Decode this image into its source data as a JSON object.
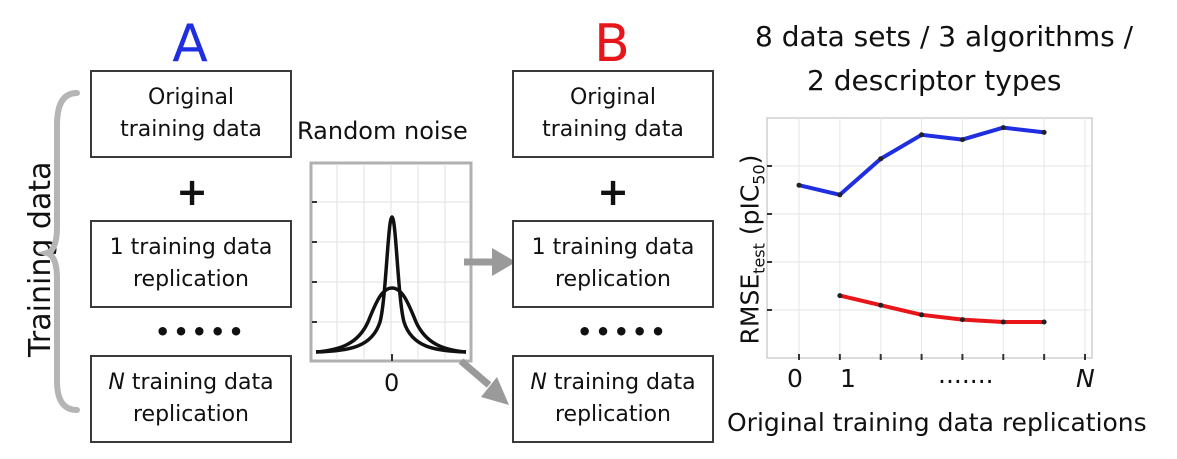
{
  "panel_a": {
    "label": "A",
    "label_color": "#1f2ee0",
    "side_label": "Training data",
    "box1": {
      "line1": "Original",
      "line2": "training data"
    },
    "plus": "+",
    "box2": {
      "line1": "1 training data",
      "line2": "replication"
    },
    "dots": "•••••",
    "box3": {
      "n": "N",
      "line1": " training data",
      "line2": "replication"
    }
  },
  "noise": {
    "title": "Random noise",
    "x_tick": "0"
  },
  "panel_b": {
    "label": "B",
    "label_color": "#e8161b",
    "box1": {
      "line1": "Original",
      "line2": "training data"
    },
    "plus": "+",
    "box2": {
      "line1": "1 training data",
      "line2": "replication"
    },
    "dots": "•••••",
    "box3": {
      "n": "N",
      "line1": " training data",
      "line2": "replication"
    }
  },
  "plot": {
    "title_line1": "8 data sets / 3 algorithms /",
    "title_line2": "2 descriptor types",
    "ylabel_main": "RMSE",
    "ylabel_sub": "test",
    "ylabel_paren_open": " (pIC",
    "ylabel_sub2": "50",
    "ylabel_paren_close": ")",
    "xlabel": "Original training data replications",
    "x_ticks": [
      "0",
      "1",
      ".......",
      "N"
    ],
    "colors": {
      "upper": "#1f2ee0",
      "lower": "#e8161b"
    }
  },
  "chart_data": {
    "type": "line",
    "x": [
      0,
      1,
      2,
      3,
      4,
      5,
      6,
      7
    ],
    "series": [
      {
        "values": [
          0.72,
          0.68,
          0.83,
          0.93,
          0.91,
          0.96,
          0.94,
          null
        ]
      },
      {
        "values": [
          null,
          0.26,
          0.22,
          0.18,
          0.16,
          0.15,
          0.15,
          null
        ]
      }
    ],
    "xlim": [
      0,
      7
    ],
    "ylim": [
      0,
      1
    ],
    "grid": true
  }
}
